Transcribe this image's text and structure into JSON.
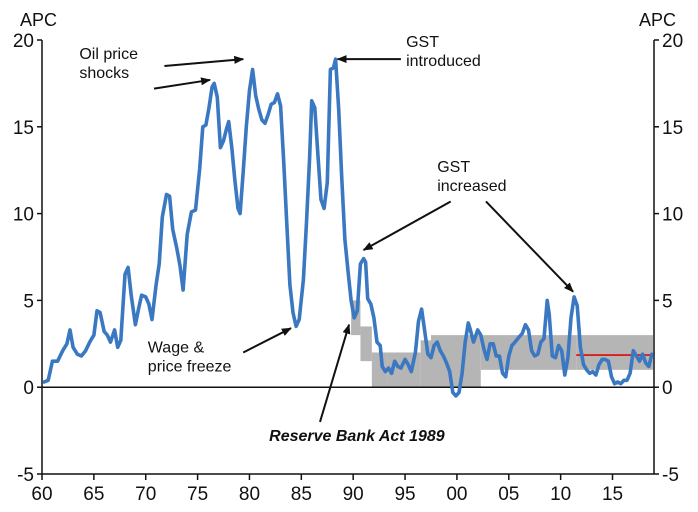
{
  "chart_data": {
    "type": "line",
    "ylabel_left": "APC",
    "ylabel_right": "APC",
    "ylim": [
      -5,
      20
    ],
    "xlim": [
      1960,
      2019
    ],
    "x_ticks": [
      {
        "value": 1960,
        "label": "60"
      },
      {
        "value": 1965,
        "label": "65"
      },
      {
        "value": 1970,
        "label": "70"
      },
      {
        "value": 1975,
        "label": "75"
      },
      {
        "value": 1980,
        "label": "80"
      },
      {
        "value": 1985,
        "label": "85"
      },
      {
        "value": 1990,
        "label": "90"
      },
      {
        "value": 1995,
        "label": "95"
      },
      {
        "value": 2000,
        "label": "00"
      },
      {
        "value": 2005,
        "label": "05"
      },
      {
        "value": 2010,
        "label": "10"
      },
      {
        "value": 2015,
        "label": "15"
      }
    ],
    "y_ticks": [
      -5,
      0,
      5,
      10,
      15,
      20
    ],
    "series": [
      {
        "color": "#3a78c2",
        "points": [
          [
            1960.2,
            0.3
          ],
          [
            1960.6,
            0.4
          ],
          [
            1961.0,
            1.5
          ],
          [
            1961.5,
            1.5
          ],
          [
            1962.0,
            2.1
          ],
          [
            1962.4,
            2.5
          ],
          [
            1962.7,
            3.3
          ],
          [
            1963.0,
            2.3
          ],
          [
            1963.4,
            1.9
          ],
          [
            1963.8,
            1.8
          ],
          [
            1964.2,
            2.1
          ],
          [
            1964.6,
            2.6
          ],
          [
            1965.0,
            3.0
          ],
          [
            1965.3,
            4.4
          ],
          [
            1965.6,
            4.3
          ],
          [
            1966.0,
            3.2
          ],
          [
            1966.3,
            3.0
          ],
          [
            1966.6,
            2.6
          ],
          [
            1967.0,
            3.3
          ],
          [
            1967.3,
            2.3
          ],
          [
            1967.6,
            2.7
          ],
          [
            1968.0,
            6.5
          ],
          [
            1968.3,
            6.9
          ],
          [
            1968.6,
            5.3
          ],
          [
            1969.0,
            3.6
          ],
          [
            1969.3,
            4.5
          ],
          [
            1969.6,
            5.3
          ],
          [
            1970.0,
            5.2
          ],
          [
            1970.3,
            4.8
          ],
          [
            1970.6,
            3.9
          ],
          [
            1971.0,
            5.9
          ],
          [
            1971.3,
            7.1
          ],
          [
            1971.6,
            9.8
          ],
          [
            1972.0,
            11.1
          ],
          [
            1972.3,
            11.0
          ],
          [
            1972.6,
            9.1
          ],
          [
            1973.0,
            8.0
          ],
          [
            1973.3,
            7.0
          ],
          [
            1973.6,
            5.6
          ],
          [
            1974.0,
            8.8
          ],
          [
            1974.4,
            10.1
          ],
          [
            1974.8,
            10.2
          ],
          [
            1975.2,
            12.6
          ],
          [
            1975.5,
            15.0
          ],
          [
            1975.8,
            15.1
          ],
          [
            1976.1,
            16.1
          ],
          [
            1976.4,
            17.3
          ],
          [
            1976.6,
            17.5
          ],
          [
            1976.9,
            16.7
          ],
          [
            1977.2,
            13.8
          ],
          [
            1977.5,
            14.2
          ],
          [
            1977.8,
            14.9
          ],
          [
            1978.0,
            15.3
          ],
          [
            1978.3,
            13.8
          ],
          [
            1978.6,
            11.9
          ],
          [
            1978.9,
            10.3
          ],
          [
            1979.1,
            10.0
          ],
          [
            1979.4,
            12.4
          ],
          [
            1979.7,
            15.0
          ],
          [
            1980.0,
            17.1
          ],
          [
            1980.3,
            18.3
          ],
          [
            1980.6,
            16.8
          ],
          [
            1980.9,
            16.0
          ],
          [
            1981.2,
            15.4
          ],
          [
            1981.5,
            15.2
          ],
          [
            1981.8,
            15.7
          ],
          [
            1982.1,
            16.3
          ],
          [
            1982.4,
            16.4
          ],
          [
            1982.7,
            16.9
          ],
          [
            1983.0,
            16.2
          ],
          [
            1983.3,
            13.0
          ],
          [
            1983.6,
            9.4
          ],
          [
            1983.9,
            5.9
          ],
          [
            1984.2,
            4.3
          ],
          [
            1984.5,
            3.5
          ],
          [
            1984.8,
            3.9
          ],
          [
            1985.2,
            6.2
          ],
          [
            1985.5,
            9.5
          ],
          [
            1985.8,
            13.2
          ],
          [
            1986.0,
            16.5
          ],
          [
            1986.3,
            16.1
          ],
          [
            1986.6,
            13.4
          ],
          [
            1986.9,
            10.8
          ],
          [
            1987.2,
            10.3
          ],
          [
            1987.5,
            11.8
          ],
          [
            1987.8,
            18.3
          ],
          [
            1988.1,
            18.4
          ],
          [
            1988.3,
            18.9
          ],
          [
            1988.6,
            16.0
          ],
          [
            1988.9,
            12.0
          ],
          [
            1989.2,
            8.5
          ],
          [
            1989.5,
            6.7
          ],
          [
            1989.8,
            5.0
          ],
          [
            1990.1,
            4.0
          ],
          [
            1990.4,
            4.4
          ],
          [
            1990.7,
            7.1
          ],
          [
            1991.0,
            7.4
          ],
          [
            1991.2,
            7.2
          ],
          [
            1991.4,
            5.1
          ],
          [
            1991.7,
            4.8
          ],
          [
            1992.0,
            4.0
          ],
          [
            1992.3,
            2.6
          ],
          [
            1992.6,
            2.4
          ],
          [
            1992.8,
            1.2
          ],
          [
            1993.1,
            0.9
          ],
          [
            1993.4,
            1.1
          ],
          [
            1993.7,
            0.8
          ],
          [
            1994.0,
            1.5
          ],
          [
            1994.3,
            1.2
          ],
          [
            1994.6,
            1.1
          ],
          [
            1995.0,
            1.6
          ],
          [
            1995.3,
            1.3
          ],
          [
            1995.6,
            0.9
          ],
          [
            1996.0,
            2.0
          ],
          [
            1996.3,
            3.8
          ],
          [
            1996.6,
            4.5
          ],
          [
            1996.9,
            3.2
          ],
          [
            1997.2,
            1.9
          ],
          [
            1997.5,
            1.7
          ],
          [
            1997.8,
            2.4
          ],
          [
            1998.1,
            2.6
          ],
          [
            1998.4,
            2.1
          ],
          [
            1998.7,
            1.8
          ],
          [
            1999.0,
            1.4
          ],
          [
            1999.3,
            0.9
          ],
          [
            1999.6,
            -0.3
          ],
          [
            1999.9,
            -0.5
          ],
          [
            2000.2,
            -0.3
          ],
          [
            2000.5,
            0.8
          ],
          [
            2000.8,
            2.6
          ],
          [
            2001.1,
            3.7
          ],
          [
            2001.3,
            3.3
          ],
          [
            2001.6,
            2.6
          ],
          [
            2002.0,
            3.3
          ],
          [
            2002.3,
            3.0
          ],
          [
            2002.6,
            2.2
          ],
          [
            2002.9,
            1.6
          ],
          [
            2003.2,
            2.5
          ],
          [
            2003.5,
            2.5
          ],
          [
            2003.8,
            1.8
          ],
          [
            2004.1,
            1.8
          ],
          [
            2004.4,
            0.8
          ],
          [
            2004.7,
            0.6
          ],
          [
            2005.0,
            1.8
          ],
          [
            2005.3,
            2.4
          ],
          [
            2005.6,
            2.6
          ],
          [
            2006.0,
            2.9
          ],
          [
            2006.3,
            3.1
          ],
          [
            2006.6,
            3.6
          ],
          [
            2006.9,
            3.3
          ],
          [
            2007.2,
            2.1
          ],
          [
            2007.5,
            1.8
          ],
          [
            2007.8,
            1.9
          ],
          [
            2008.1,
            2.6
          ],
          [
            2008.4,
            2.8
          ],
          [
            2008.7,
            5.0
          ],
          [
            2008.9,
            4.2
          ],
          [
            2009.2,
            1.8
          ],
          [
            2009.5,
            1.7
          ],
          [
            2009.8,
            2.4
          ],
          [
            2010.1,
            2.1
          ],
          [
            2010.4,
            0.7
          ],
          [
            2010.7,
            1.7
          ],
          [
            2011.0,
            4.0
          ],
          [
            2011.3,
            5.2
          ],
          [
            2011.6,
            4.7
          ],
          [
            2011.9,
            2.3
          ],
          [
            2012.2,
            1.3
          ],
          [
            2012.5,
            1.0
          ],
          [
            2012.8,
            0.8
          ],
          [
            2013.1,
            0.9
          ],
          [
            2013.4,
            0.7
          ],
          [
            2013.7,
            1.3
          ],
          [
            2014.0,
            1.6
          ],
          [
            2014.3,
            1.6
          ],
          [
            2014.6,
            1.5
          ],
          [
            2014.9,
            0.6
          ],
          [
            2015.2,
            0.2
          ],
          [
            2015.5,
            0.3
          ],
          [
            2015.8,
            0.2
          ],
          [
            2016.1,
            0.4
          ],
          [
            2016.4,
            0.4
          ],
          [
            2016.7,
            0.8
          ],
          [
            2017.0,
            2.1
          ],
          [
            2017.3,
            1.8
          ],
          [
            2017.6,
            1.5
          ],
          [
            2017.9,
            1.9
          ],
          [
            2018.2,
            1.4
          ],
          [
            2018.5,
            1.2
          ],
          [
            2018.8,
            1.9
          ]
        ]
      }
    ],
    "target_bands": [
      {
        "x0": 1989.8,
        "x1": 1990.7,
        "y0": 3.0,
        "y1": 5.0
      },
      {
        "x0": 1990.7,
        "x1": 1991.8,
        "y0": 1.5,
        "y1": 3.5
      },
      {
        "x0": 1991.8,
        "x1": 1993.3,
        "y0": 0.0,
        "y1": 2.0
      },
      {
        "x0": 1993.3,
        "x1": 1996.5,
        "y0": 0.0,
        "y1": 2.0
      },
      {
        "x0": 1996.5,
        "x1": 1997.5,
        "y0": 0.0,
        "y1": 2.7
      },
      {
        "x0": 1997.5,
        "x1": 2002.3,
        "y0": 0.0,
        "y1": 3.0
      },
      {
        "x0": 2002.3,
        "x1": 2011.5,
        "y0": 1.0,
        "y1": 3.0
      },
      {
        "x0": 2011.5,
        "x1": 2018.9,
        "y0": 1.0,
        "y1": 3.0
      }
    ],
    "midpoint_line": {
      "x0": 2011.5,
      "x1": 2018.9,
      "y": 1.85,
      "color": "#d62020"
    },
    "band_color": "#b5b5b5",
    "annotations": [
      {
        "id": "oil",
        "lines": [
          "Oil price",
          "shocks"
        ],
        "style": "normal",
        "text_x": 1963.6,
        "text_y": 18.9,
        "arrows": [
          {
            "from": [
              1971.8,
              18.5
            ],
            "to": [
              1979.4,
              18.9
            ]
          },
          {
            "from": [
              1970.8,
              17.2
            ],
            "to": [
              1976.2,
              17.7
            ]
          }
        ]
      },
      {
        "id": "gst_intro",
        "lines": [
          "GST",
          "introduced"
        ],
        "style": "normal",
        "text_x": 1995.1,
        "text_y": 19.6,
        "arrows": [
          {
            "from": [
              1994.6,
              18.9
            ],
            "to": [
              1988.5,
              18.9
            ]
          }
        ]
      },
      {
        "id": "gst_inc",
        "lines": [
          "GST",
          "increased"
        ],
        "style": "normal",
        "text_x": 1998.1,
        "text_y": 12.4,
        "arrows": [
          {
            "from": [
              1999.4,
              10.7
            ],
            "to": [
              1991.0,
              7.9
            ]
          },
          {
            "from": [
              2002.8,
              10.7
            ],
            "to": [
              2011.2,
              5.5
            ]
          }
        ]
      },
      {
        "id": "wage",
        "lines": [
          "Wage &",
          "price freeze"
        ],
        "style": "normal",
        "text_x": 1970.2,
        "text_y": 2.0,
        "arrows": [
          {
            "from": [
              1979.4,
              2.0
            ],
            "to": [
              1984.0,
              3.4
            ]
          }
        ]
      },
      {
        "id": "rba",
        "lines": [
          "Reserve Bank Act 1989"
        ],
        "style": "bold-italic",
        "text_x": 1981.9,
        "text_y": -3.1,
        "arrows": [
          {
            "from": [
              1986.8,
              -2.0
            ],
            "to": [
              1989.6,
              3.6
            ]
          }
        ]
      }
    ]
  }
}
